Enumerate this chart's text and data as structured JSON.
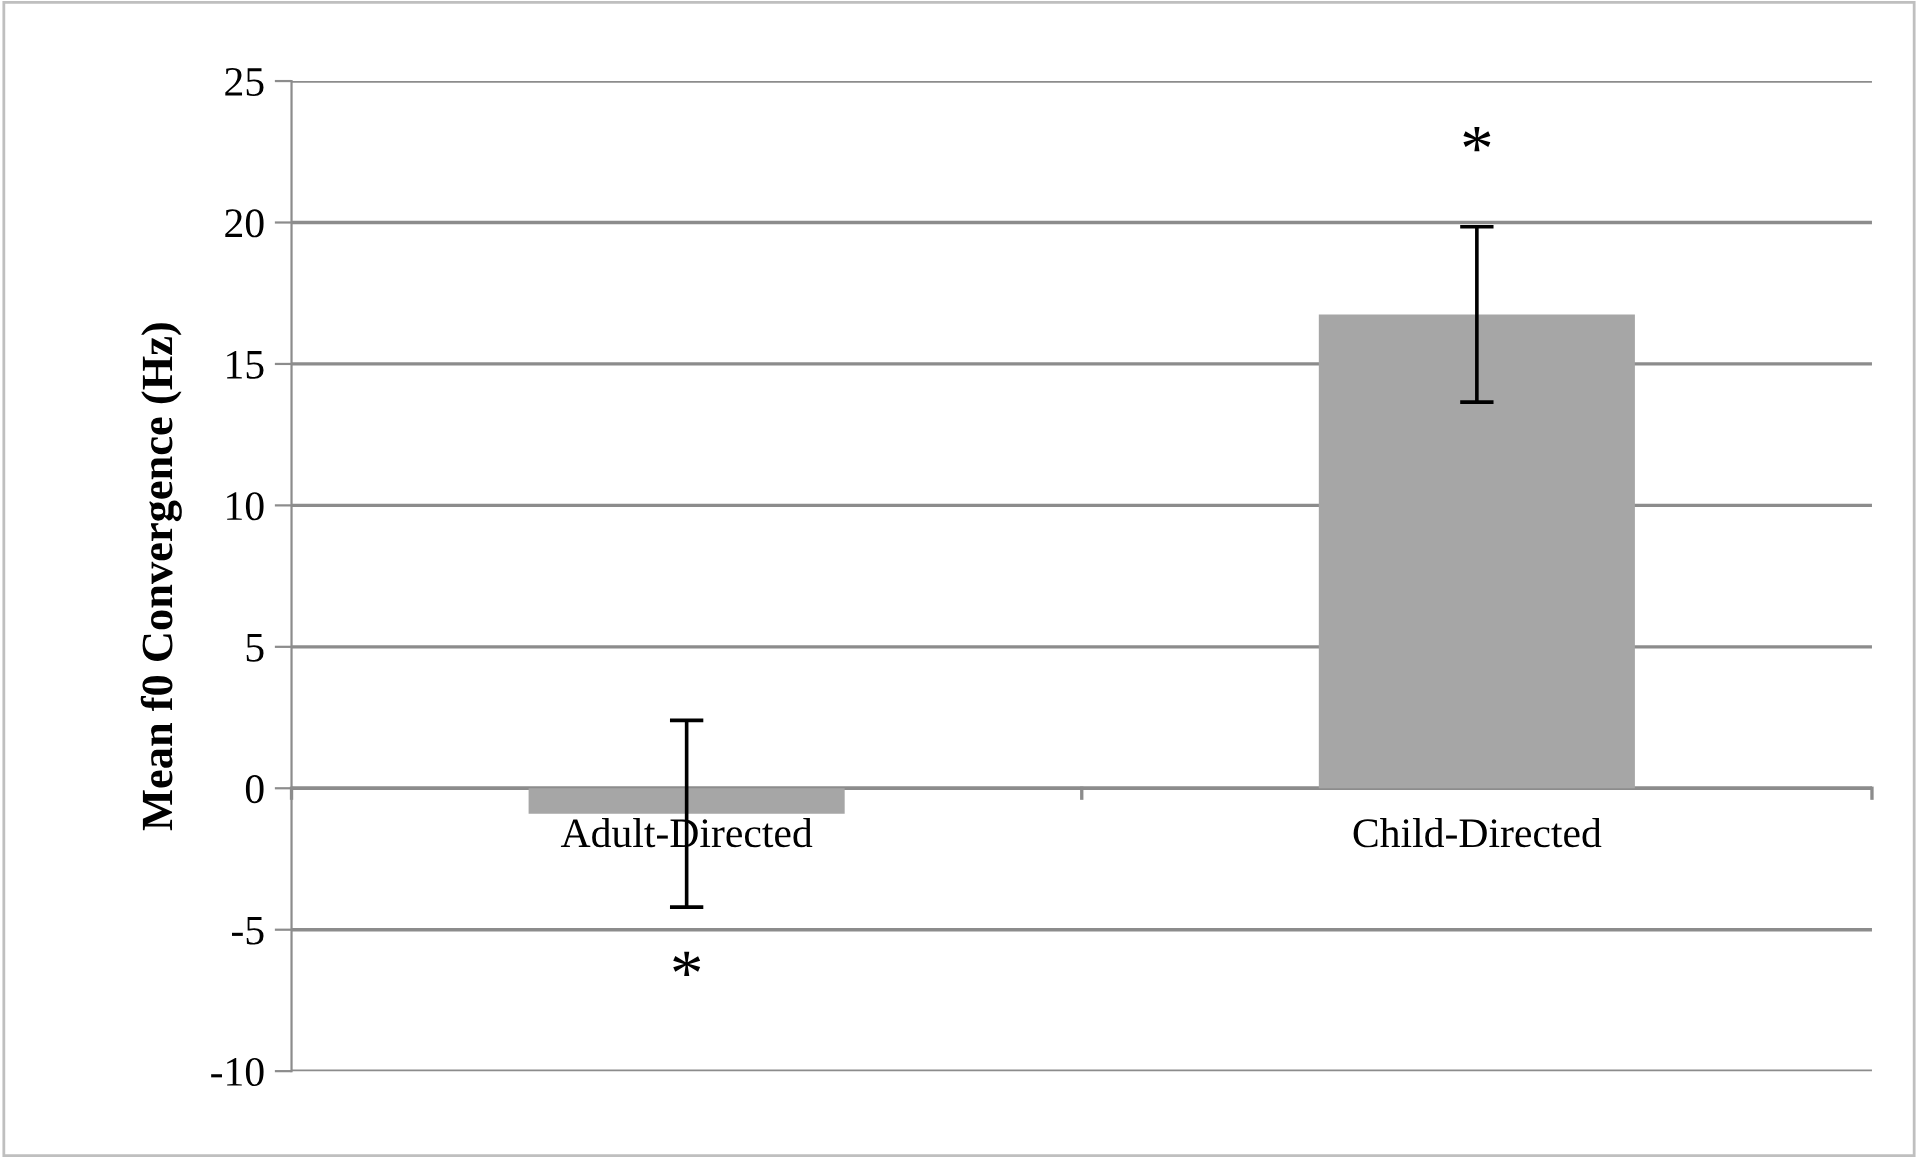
{
  "chart_data": {
    "type": "bar",
    "ylabel": "Mean f0 Convergence (Hz)",
    "categories": [
      "Adult-Directed",
      "Child-Directed"
    ],
    "values": [
      -0.9,
      16.75
    ],
    "errors": [
      3.3,
      3.1
    ],
    "color": "#a6a6a6",
    "ylim": [
      -10,
      25
    ],
    "yticks": [
      -10,
      -5,
      0,
      5,
      10,
      15,
      20,
      25
    ],
    "grid": "y",
    "annotations": [
      "*",
      "*"
    ]
  }
}
